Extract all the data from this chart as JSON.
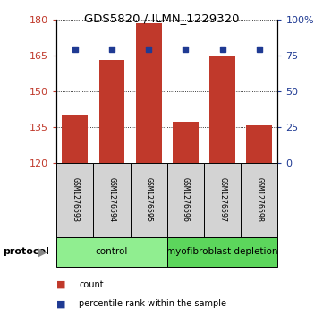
{
  "title": "GDS5820 / ILMN_1229320",
  "samples": [
    "GSM1276593",
    "GSM1276594",
    "GSM1276595",
    "GSM1276596",
    "GSM1276597",
    "GSM1276598"
  ],
  "counts": [
    140.0,
    163.0,
    178.5,
    137.0,
    165.0,
    135.5
  ],
  "percentiles": [
    79.0,
    79.5,
    79.5,
    79.0,
    79.5,
    79.0
  ],
  "ylim_left": [
    120,
    180
  ],
  "ylim_right": [
    0,
    100
  ],
  "yticks_left": [
    120,
    135,
    150,
    165,
    180
  ],
  "yticks_right": [
    0,
    25,
    50,
    75,
    100
  ],
  "ytick_labels_right": [
    "0",
    "25",
    "50",
    "75",
    "100%"
  ],
  "bar_color": "#C0392B",
  "dot_color": "#1F3A93",
  "sample_bg_color": "#D3D3D3",
  "protocol_groups": [
    {
      "label": "control",
      "start": 0,
      "end": 3,
      "color": "#90EE90"
    },
    {
      "label": "myofibroblast depletion",
      "start": 3,
      "end": 6,
      "color": "#5CD65C"
    }
  ],
  "legend_items": [
    {
      "label": "count",
      "color": "#C0392B"
    },
    {
      "label": "percentile rank within the sample",
      "color": "#1F3A93"
    }
  ],
  "protocol_label": "protocol",
  "figsize": [
    3.61,
    3.63
  ],
  "dpi": 100
}
